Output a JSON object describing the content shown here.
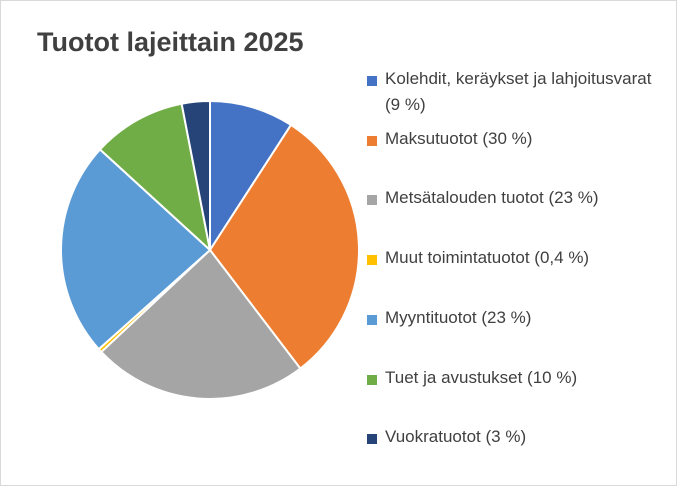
{
  "chart_data": {
    "type": "pie",
    "title": "Tuotot lajeittain 2025",
    "categories": [
      "Kolehdit, keräykset ja lahjoitusvarat (9 %)",
      "Maksutuotot (30 %)",
      "Metsätalouden tuotot (23 %)",
      "Muut toimintatuotot (0,4 %)",
      "Myyntituotot (23 %)",
      "Tuet ja avustukset (10 %)",
      "Vuokratuotot (3 %)"
    ],
    "values": [
      9,
      30,
      23,
      0.4,
      23,
      10,
      3
    ],
    "colors": [
      "#4472c4",
      "#ed7d31",
      "#a5a5a5",
      "#ffc000",
      "#5b9bd5",
      "#70ad47",
      "#264478"
    ],
    "legend": "right"
  }
}
